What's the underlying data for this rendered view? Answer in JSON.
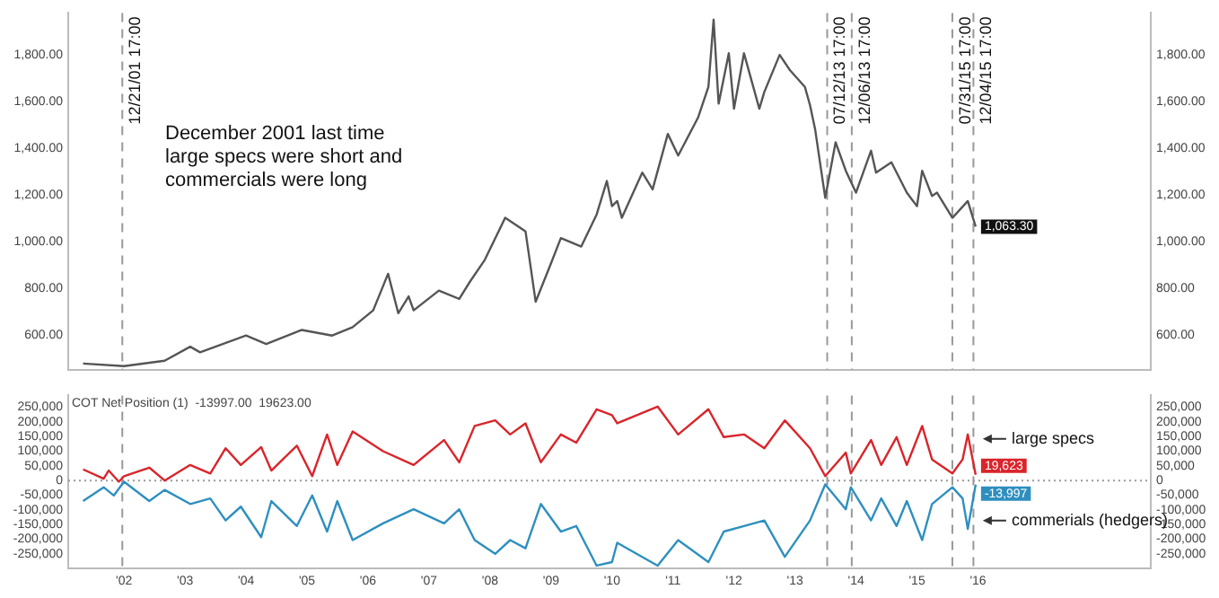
{
  "chart_data": [
    {
      "type": "line",
      "marker": "none",
      "tick_labels": "y",
      "xlim": [
        "2001-02",
        "2018-11"
      ],
      "ylim": [
        450,
        1980
      ],
      "yticks": [
        {
          "value": 600,
          "label": "600.00"
        },
        {
          "value": 800,
          "label": "800.00"
        },
        {
          "value": 1000,
          "label": "1,000.00"
        },
        {
          "value": 1200,
          "label": "1,200.00"
        },
        {
          "value": 1400,
          "label": "1,400.00"
        },
        {
          "value": 1600,
          "label": "1,600.00"
        },
        {
          "value": 1800,
          "label": "1,800.00"
        }
      ],
      "y2lim": [
        450,
        1980
      ],
      "y2ticks": [
        {
          "value": 600,
          "label": "600.00"
        },
        {
          "value": 800,
          "label": "800.00"
        },
        {
          "value": 1000,
          "label": "1,000.00"
        },
        {
          "value": 1200,
          "label": "1,200.00"
        },
        {
          "value": 1400,
          "label": "1,400.00"
        },
        {
          "value": 1600,
          "label": "1,600.00"
        },
        {
          "value": 1800,
          "label": "1,800.00"
        }
      ],
      "series": [
        {
          "color": "#555555",
          "x": [
            "2001-05",
            "2002-01",
            "2002-09",
            "2003-02",
            "2003-04",
            "2004-01",
            "2004-05",
            "2004-12",
            "2005-06",
            "2005-10",
            "2006-02",
            "2006-05",
            "2006-07",
            "2006-09",
            "2006-10",
            "2007-03",
            "2007-07",
            "2007-09",
            "2007-12",
            "2008-04",
            "2008-08",
            "2008-10",
            "2009-01",
            "2009-03",
            "2009-07",
            "2009-10",
            "2009-12",
            "2010-01",
            "2010-02",
            "2010-03",
            "2010-07",
            "2010-09",
            "2010-12",
            "2011-02",
            "2011-06",
            "2011-08",
            "2011-09",
            "2011-10",
            "2011-12",
            "2012-01",
            "2012-03",
            "2012-06",
            "2012-07",
            "2012-10",
            "2012-12",
            "2013-03",
            "2013-04",
            "2013-05",
            "2013-06",
            "2013-07",
            "2013-09",
            "2013-11",
            "2014-01",
            "2014-04",
            "2014-05",
            "2014-08",
            "2014-11",
            "2015-01",
            "2015-02",
            "2015-04",
            "2015-05",
            "2015-08",
            "2015-11",
            "2015-12-18"
          ],
          "values": [
            476,
            465,
            488,
            548,
            524,
            596,
            560,
            620,
            596,
            632,
            704,
            861,
            692,
            764,
            704,
            789,
            753,
            825,
            921,
            1101,
            1043,
            741,
            906,
            1014,
            978,
            1115,
            1259,
            1151,
            1173,
            1101,
            1295,
            1223,
            1461,
            1368,
            1533,
            1663,
            1951,
            1591,
            1807,
            1569,
            1807,
            1569,
            1641,
            1800,
            1735,
            1663,
            1584,
            1483,
            1332,
            1187,
            1425,
            1303,
            1209,
            1389,
            1295,
            1339,
            1209,
            1151,
            1303,
            1195,
            1209,
            1101,
            1173,
            1063.3
          ],
          "value_labels": [
            null,
            null,
            null,
            null,
            null,
            null,
            null,
            null,
            null,
            null,
            null,
            null,
            null,
            null,
            null,
            null,
            null,
            null,
            null,
            null,
            null,
            null,
            null,
            null,
            null,
            null,
            null,
            null,
            null,
            null,
            null,
            null,
            null,
            null,
            null,
            null,
            null,
            null,
            null,
            null,
            null,
            null,
            null,
            null,
            null,
            null,
            null,
            null,
            null,
            null,
            null,
            null,
            null,
            null,
            null,
            null,
            null,
            null,
            null,
            null,
            null,
            null,
            null,
            "1,063.30"
          ]
        }
      ],
      "ref_lines": [
        {
          "axis": "x",
          "value": "2001-12-21T17:00",
          "label": "12/21/01 17:00",
          "color": "#999999",
          "line_style": "dashed"
        },
        {
          "axis": "x",
          "value": "2013-07-12T17:00",
          "label": "07/12/13 17:00",
          "color": "#999999",
          "line_style": "dashed"
        },
        {
          "axis": "x",
          "value": "2013-12-06T17:00",
          "label": "12/06/13 17:00",
          "color": "#999999",
          "line_style": "dashed"
        },
        {
          "axis": "x",
          "value": "2015-07-31T17:00",
          "label": "07/31/15 17:00",
          "color": "#999999",
          "line_style": "dashed"
        },
        {
          "axis": "x",
          "value": "2015-12-04T17:00",
          "label": "12/04/15 17:00",
          "color": "#999999",
          "line_style": "dashed"
        }
      ],
      "annotations": [
        "December 2001 last time large specs were short and commercials were long"
      ]
    },
    {
      "type": "line",
      "marker": "none",
      "xlim": [
        "2001-02",
        "2018-11"
      ],
      "xticks": [
        {
          "value": "2002",
          "label": "'02"
        },
        {
          "value": "2003",
          "label": "'03"
        },
        {
          "value": "2004",
          "label": "'04"
        },
        {
          "value": "2005",
          "label": "'05"
        },
        {
          "value": "2006",
          "label": "'06"
        },
        {
          "value": "2007",
          "label": "'07"
        },
        {
          "value": "2008",
          "label": "'08"
        },
        {
          "value": "2009",
          "label": "'09"
        },
        {
          "value": "2010",
          "label": "'10"
        },
        {
          "value": "2011",
          "label": "'11"
        },
        {
          "value": "2012",
          "label": "'12"
        },
        {
          "value": "2013",
          "label": "'13"
        },
        {
          "value": "2014",
          "label": "'14"
        },
        {
          "value": "2015",
          "label": "'15"
        },
        {
          "value": "2016",
          "label": "'16"
        }
      ],
      "ylim": [
        -300000,
        290000
      ],
      "yticks": [
        {
          "value": -250000,
          "label": "-250,000"
        },
        {
          "value": -200000,
          "label": "-200,000"
        },
        {
          "value": -150000,
          "label": "-150,000"
        },
        {
          "value": -100000,
          "label": "-100,000"
        },
        {
          "value": -50000,
          "label": "-50,000"
        },
        0,
        {
          "value": 50000,
          "label": "50,000"
        },
        {
          "value": 100000,
          "label": "100,000"
        },
        {
          "value": 150000,
          "label": "150,000"
        },
        {
          "value": 200000,
          "label": "200,000"
        },
        {
          "value": 250000,
          "label": "250,000"
        }
      ],
      "y2lim": [
        -300000,
        290000
      ],
      "y2ticks": [
        {
          "value": -250000,
          "label": "-250,000"
        },
        {
          "value": -200000,
          "label": "-200,000"
        },
        {
          "value": -150000,
          "label": "-150,000"
        },
        {
          "value": -100000,
          "label": "-100,000"
        },
        {
          "value": -50000,
          "label": "-50,000"
        },
        0,
        {
          "value": 50000,
          "label": "50,000"
        },
        {
          "value": 100000,
          "label": "100,000"
        },
        {
          "value": 150000,
          "label": "150,000"
        },
        {
          "value": 200000,
          "label": "200,000"
        },
        {
          "value": 250000,
          "label": "250,000"
        }
      ],
      "series": [
        {
          "name": "large specs",
          "color": "#d9252b",
          "x": [
            "2001-05",
            "2001-09",
            "2001-10",
            "2001-12",
            "2002-01",
            "2002-06",
            "2002-09",
            "2003-02",
            "2003-06",
            "2003-09",
            "2003-12",
            "2004-04",
            "2004-06",
            "2004-11",
            "2005-02",
            "2005-05",
            "2005-07",
            "2005-10",
            "2006-04",
            "2006-10",
            "2007-04",
            "2007-07",
            "2007-10",
            "2008-02",
            "2008-05",
            "2008-08",
            "2008-11",
            "2009-03",
            "2009-06",
            "2009-10",
            "2010-01",
            "2010-02",
            "2010-10",
            "2011-02",
            "2011-08",
            "2011-11",
            "2012-03",
            "2012-07",
            "2012-11",
            "2013-04",
            "2013-07",
            "2013-11",
            "2013-12",
            "2014-04",
            "2014-06",
            "2014-09",
            "2014-11",
            "2015-02",
            "2015-04",
            "2015-08",
            "2015-10",
            "2015-11",
            "2015-12-18"
          ],
          "values": [
            38000,
            6000,
            34000,
            -4000,
            15000,
            44000,
            0,
            53000,
            24000,
            110000,
            53000,
            114000,
            34000,
            119000,
            15000,
            157000,
            53000,
            167000,
            100000,
            53000,
            138000,
            62000,
            186000,
            205000,
            157000,
            195000,
            62000,
            157000,
            129000,
            243000,
            223000,
            195000,
            252000,
            157000,
            243000,
            148000,
            157000,
            110000,
            205000,
            110000,
            15000,
            95000,
            24000,
            138000,
            53000,
            148000,
            53000,
            186000,
            72000,
            24000,
            72000,
            157000,
            19623
          ],
          "value_labels": [
            null,
            null,
            null,
            null,
            null,
            null,
            null,
            null,
            null,
            null,
            null,
            null,
            null,
            null,
            null,
            null,
            null,
            null,
            null,
            null,
            null,
            null,
            null,
            null,
            null,
            null,
            null,
            null,
            null,
            null,
            null,
            null,
            null,
            null,
            null,
            null,
            null,
            null,
            null,
            null,
            null,
            null,
            null,
            null,
            null,
            null,
            null,
            null,
            null,
            null,
            null,
            null,
            "19,623"
          ]
        },
        {
          "name": "commerials (hedgers)",
          "color": "#2e8fbf",
          "x": [
            "2001-05",
            "2001-09",
            "2001-11",
            "2002-01",
            "2002-06",
            "2002-09",
            "2003-02",
            "2003-06",
            "2003-09",
            "2003-12",
            "2004-04",
            "2004-06",
            "2004-11",
            "2005-02",
            "2005-05",
            "2005-07",
            "2005-10",
            "2006-04",
            "2006-10",
            "2007-04",
            "2007-07",
            "2007-10",
            "2008-02",
            "2008-05",
            "2008-08",
            "2008-11",
            "2009-03",
            "2009-06",
            "2009-10",
            "2010-01",
            "2010-02",
            "2010-10",
            "2011-02",
            "2011-08",
            "2011-11",
            "2012-03",
            "2012-07",
            "2012-11",
            "2013-04",
            "2013-07",
            "2013-11",
            "2013-12",
            "2014-04",
            "2014-06",
            "2014-09",
            "2014-11",
            "2015-02",
            "2015-04",
            "2015-08",
            "2015-10",
            "2015-11",
            "2015-12-18"
          ],
          "values": [
            -70000,
            -23000,
            -51000,
            -4000,
            -70000,
            -32000,
            -80000,
            -61000,
            -136000,
            -89000,
            -193000,
            -70000,
            -155000,
            -51000,
            -174000,
            -70000,
            -203000,
            -146000,
            -98000,
            -146000,
            -98000,
            -203000,
            -250000,
            -203000,
            -231000,
            -80000,
            -174000,
            -155000,
            -290000,
            -278000,
            -212000,
            -290000,
            -203000,
            -278000,
            -174000,
            -155000,
            -136000,
            -260000,
            -136000,
            -13000,
            -98000,
            -23000,
            -136000,
            -61000,
            -155000,
            -70000,
            -203000,
            -80000,
            -23000,
            -61000,
            -165000,
            -13997
          ],
          "value_labels": [
            null,
            null,
            null,
            null,
            null,
            null,
            null,
            null,
            null,
            null,
            null,
            null,
            null,
            null,
            null,
            null,
            null,
            null,
            null,
            null,
            null,
            null,
            null,
            null,
            null,
            null,
            null,
            null,
            null,
            null,
            null,
            null,
            null,
            null,
            null,
            null,
            null,
            null,
            null,
            null,
            null,
            null,
            null,
            null,
            null,
            null,
            null,
            null,
            null,
            null,
            null,
            "-13,997"
          ]
        }
      ],
      "ref_lines": [
        {
          "axis": "y",
          "value": 0,
          "color": "#999999",
          "line_style": "dotted"
        },
        {
          "axis": "x",
          "value": "2001-12-21T17:00",
          "color": "#999999",
          "line_style": "dashed"
        },
        {
          "axis": "x",
          "value": "2013-07-12T17:00",
          "color": "#999999",
          "line_style": "dashed"
        },
        {
          "axis": "x",
          "value": "2013-12-06T17:00",
          "color": "#999999",
          "line_style": "dashed"
        },
        {
          "axis": "x",
          "value": "2015-07-31T17:00",
          "color": "#999999",
          "line_style": "dashed"
        },
        {
          "axis": "x",
          "value": "2015-12-04T17:00",
          "color": "#999999",
          "line_style": "dashed"
        }
      ],
      "annotations": [
        "COT Net Position (1)  -13997.00  19623.00"
      ]
    }
  ]
}
